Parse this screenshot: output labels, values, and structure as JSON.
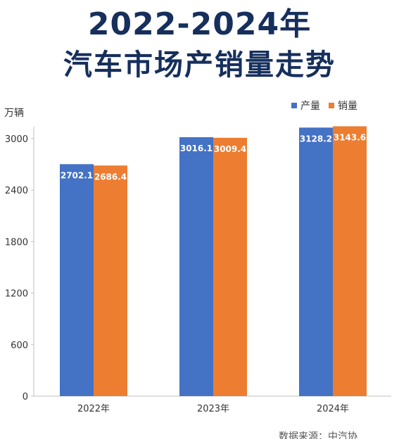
{
  "title": {
    "line1": "2022-2024年",
    "line2": "汽车市场产销量走势"
  },
  "source_text": "数据来源：中汽协",
  "colors": {
    "title": "#162f5c",
    "production": "#4472c4",
    "sales": "#ed7d31"
  },
  "chart_data": {
    "type": "bar",
    "title": "2022-2024年汽车市场产销量走势",
    "ylabel": "万辆",
    "xlabel": "",
    "categories": [
      "2022年",
      "2023年",
      "2024年"
    ],
    "series": [
      {
        "name": "产量",
        "color": "#4472c4",
        "values": [
          2702.1,
          3016.1,
          3128.2
        ],
        "labels": [
          "2702.1",
          "3016.1",
          "3128.2"
        ]
      },
      {
        "name": "销量",
        "color": "#ed7d31",
        "values": [
          2686.4,
          3009.4,
          3143.6
        ],
        "labels": [
          "2686.4",
          "3009.4",
          "3143.6"
        ]
      }
    ],
    "ylim": [
      0,
      3000
    ],
    "yticks": [
      0,
      600,
      1200,
      1800,
      2400,
      3000
    ],
    "grid": false,
    "legend_position": "top-right"
  }
}
